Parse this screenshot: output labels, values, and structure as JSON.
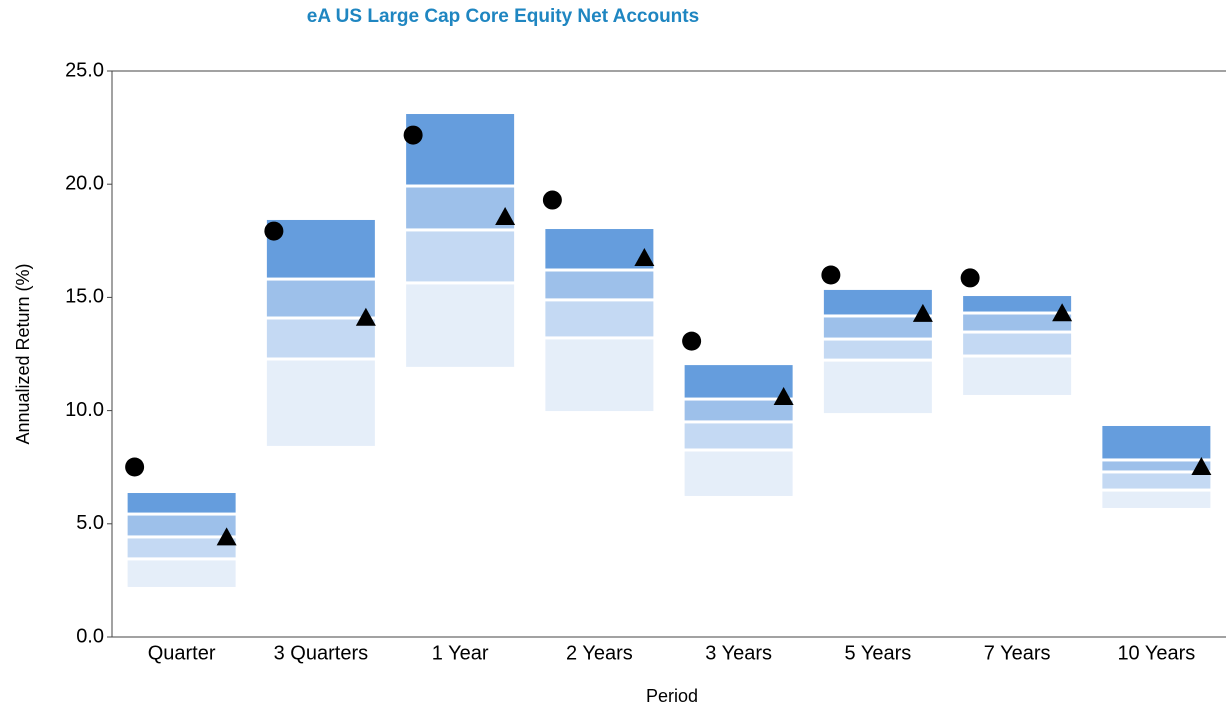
{
  "chart_data": {
    "type": "floating_bar",
    "title": "eA US Large Cap Core Equity Net Accounts",
    "x_label": "Period",
    "y_label": "Annualized Return (%)",
    "categories": [
      "Quarter",
      "3 Quarters",
      "1 Year",
      "2 Years",
      "3 Years",
      "5 Years",
      "7 Years",
      "10 Years"
    ],
    "ranges": [
      [
        6.36,
        5.43,
        4.42,
        3.45,
        2.21
      ],
      [
        18.42,
        15.81,
        14.09,
        12.28,
        8.44
      ],
      [
        23.1,
        19.92,
        17.98,
        15.64,
        11.93
      ],
      [
        18.02,
        16.21,
        14.89,
        13.21,
        9.98
      ],
      [
        12.01,
        10.51,
        9.5,
        8.26,
        6.23
      ],
      [
        15.33,
        14.18,
        13.16,
        12.23,
        9.89
      ],
      [
        15.06,
        14.31,
        13.47,
        12.41,
        10.69
      ],
      [
        9.32,
        7.82,
        7.29,
        6.49,
        5.7
      ]
    ],
    "band_colors": [
      "#659ddd",
      "#9dc0ea",
      "#c4d9f3",
      "#e5eef9"
    ],
    "markers": [
      {
        "shape": "circle",
        "color": "#000000",
        "values": [
          7.51,
          17.93,
          22.17,
          19.3,
          13.07,
          15.99,
          15.86,
          null
        ]
      },
      {
        "shape": "triangle",
        "color": "#000000",
        "values": [
          4.4,
          14.1,
          18.55,
          16.74,
          10.6,
          14.27,
          14.3,
          7.51
        ]
      }
    ],
    "ylim": [
      0,
      25
    ],
    "yticks": [
      {
        "value": 0,
        "label": "0.0"
      },
      {
        "value": 5,
        "label": "5.0"
      },
      {
        "value": 10,
        "label": "10.0"
      },
      {
        "value": 15,
        "label": "15.0"
      },
      {
        "value": 20,
        "label": "20.0"
      },
      {
        "value": 25,
        "label": "25.0"
      }
    ]
  }
}
